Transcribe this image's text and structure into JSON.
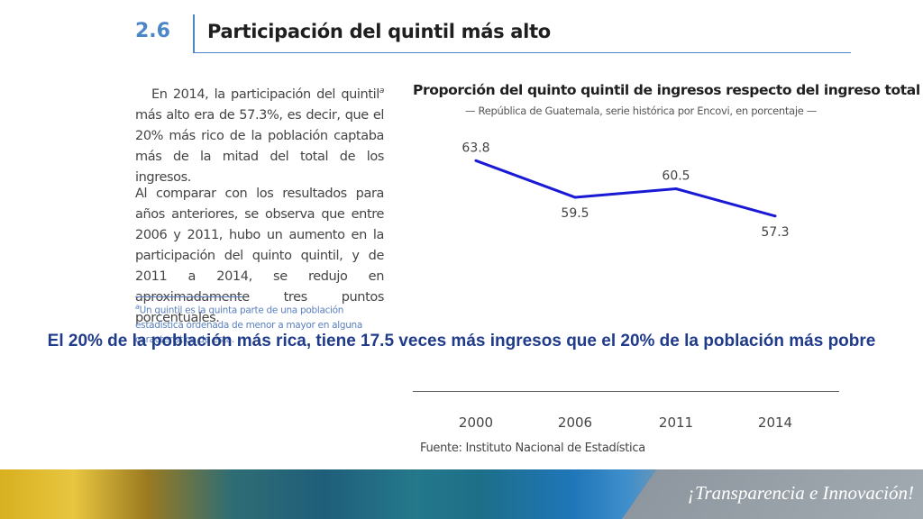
{
  "section": {
    "number": "2.6",
    "title": "Participación del quintil más alto"
  },
  "body": {
    "para1_before": "En 2014, la participación del quintil",
    "para1_sup": "a",
    "para1_after": " más alto era de 57.3%, es decir, que el 20% más rico de la población captaba más de la mitad del total de los ingresos.",
    "para2": "Al comparar con los resultados para años anteriores, se observa que entre 2006 y 2011, hubo un aumento en la participación del quinto quintil, y de 2011 a 2014, se redujo en aproximadamente tres puntos porcentuales.",
    "footnote_sup": "a",
    "footnote": "Un quintil es la quinta parte de una población estadística ordenada de menor a mayor en alguna característica de esta."
  },
  "headline": "El 20% de la población más rica, tiene 17.5 veces más ingresos que el 20% de la población más pobre",
  "source": "Fuente: Instituto Nacional de Estadística",
  "slogan": "¡Transparencia e Innovación!",
  "colors": {
    "line": "#1a1ad6",
    "accent": "#4a86c8",
    "headline": "#1f3b8a"
  },
  "chart_data": {
    "type": "line",
    "title": "Proporción del quinto quintil de ingresos respecto del ingreso total",
    "subtitle": "— República de Guatemala, serie histórica por Encovi, en porcentaje —",
    "categories": [
      "2000",
      "2006",
      "2011",
      "2014"
    ],
    "series": [
      {
        "values": [
          63.8,
          59.5,
          60.5,
          57.3
        ]
      }
    ],
    "data_labels": [
      "63.8",
      "59.5",
      "60.5",
      "57.3"
    ],
    "ylim": [
      52,
      67
    ],
    "grid": false
  }
}
